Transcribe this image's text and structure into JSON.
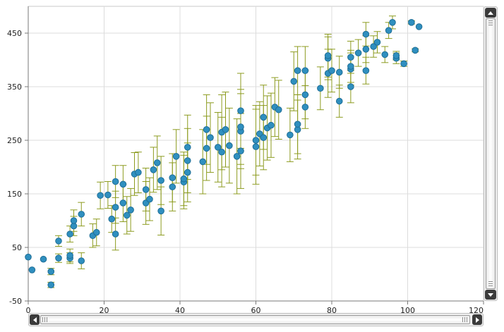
{
  "colors": {
    "point_fill": "#2f8fbf",
    "point_stroke": "#1f6e96",
    "error_bar": "#8c9b1f",
    "grid": "#dcdcdc",
    "axis": "#7a7a7a",
    "scroll_button": "#3b3b3b"
  },
  "scrollbars": {
    "vertical": {
      "up_icon": "arrow-up-icon",
      "down_icon": "arrow-down-icon"
    },
    "horizontal": {
      "left_icon": "arrow-left-icon",
      "right_icon": "arrow-right-icon"
    }
  },
  "chart_data": {
    "type": "scatter",
    "title": "",
    "xlabel": "",
    "ylabel": "",
    "xlim": [
      0,
      120
    ],
    "ylim": [
      -50,
      500
    ],
    "x_ticks": [
      0,
      20,
      40,
      60,
      80,
      100,
      120
    ],
    "y_ticks": [
      -50,
      50,
      150,
      250,
      350,
      450
    ],
    "grid": true,
    "legend": "none",
    "error_bars": true,
    "points": [
      {
        "x": 0,
        "y": 32,
        "err": 0
      },
      {
        "x": 1,
        "y": 8,
        "err": 0
      },
      {
        "x": 4,
        "y": 28,
        "err": 0
      },
      {
        "x": 6,
        "y": -20,
        "err": 5
      },
      {
        "x": 6,
        "y": 5,
        "err": 6
      },
      {
        "x": 8,
        "y": 30,
        "err": 8
      },
      {
        "x": 8,
        "y": 62,
        "err": 10
      },
      {
        "x": 11,
        "y": 30,
        "err": 10
      },
      {
        "x": 11,
        "y": 35,
        "err": 12
      },
      {
        "x": 11,
        "y": 75,
        "err": 15
      },
      {
        "x": 12,
        "y": 90,
        "err": 18
      },
      {
        "x": 12,
        "y": 100,
        "err": 20
      },
      {
        "x": 14,
        "y": 25,
        "err": 15
      },
      {
        "x": 14,
        "y": 112,
        "err": 22
      },
      {
        "x": 17,
        "y": 72,
        "err": 22
      },
      {
        "x": 18,
        "y": 78,
        "err": 25
      },
      {
        "x": 19,
        "y": 147,
        "err": 25
      },
      {
        "x": 21,
        "y": 148,
        "err": 25
      },
      {
        "x": 22,
        "y": 103,
        "err": 25
      },
      {
        "x": 23,
        "y": 75,
        "err": 30
      },
      {
        "x": 23,
        "y": 125,
        "err": 30
      },
      {
        "x": 23,
        "y": 173,
        "err": 30
      },
      {
        "x": 25,
        "y": 133,
        "err": 35
      },
      {
        "x": 25,
        "y": 168,
        "err": 35
      },
      {
        "x": 26,
        "y": 110,
        "err": 35
      },
      {
        "x": 27,
        "y": 120,
        "err": 40
      },
      {
        "x": 28,
        "y": 187,
        "err": 40
      },
      {
        "x": 29,
        "y": 190,
        "err": 38
      },
      {
        "x": 31,
        "y": 133,
        "err": 40
      },
      {
        "x": 31,
        "y": 158,
        "err": 40
      },
      {
        "x": 32,
        "y": 140,
        "err": 40
      },
      {
        "x": 33,
        "y": 195,
        "err": 42
      },
      {
        "x": 34,
        "y": 208,
        "err": 50
      },
      {
        "x": 35,
        "y": 118,
        "err": 45
      },
      {
        "x": 35,
        "y": 175,
        "err": 45
      },
      {
        "x": 38,
        "y": 163,
        "err": 45
      },
      {
        "x": 38,
        "y": 180,
        "err": 45
      },
      {
        "x": 39,
        "y": 220,
        "err": 50
      },
      {
        "x": 41,
        "y": 172,
        "err": 50
      },
      {
        "x": 41,
        "y": 178,
        "err": 50
      },
      {
        "x": 42,
        "y": 190,
        "err": 55
      },
      {
        "x": 42,
        "y": 212,
        "err": 60
      },
      {
        "x": 42,
        "y": 237,
        "err": 60
      },
      {
        "x": 46,
        "y": 210,
        "err": 60
      },
      {
        "x": 47,
        "y": 235,
        "err": 60
      },
      {
        "x": 47,
        "y": 270,
        "err": 65
      },
      {
        "x": 48,
        "y": 255,
        "err": 65
      },
      {
        "x": 50,
        "y": 237,
        "err": 65
      },
      {
        "x": 51,
        "y": 228,
        "err": 65
      },
      {
        "x": 51,
        "y": 265,
        "err": 70
      },
      {
        "x": 52,
        "y": 270,
        "err": 70
      },
      {
        "x": 53,
        "y": 240,
        "err": 70
      },
      {
        "x": 55,
        "y": 220,
        "err": 70
      },
      {
        "x": 56,
        "y": 230,
        "err": 70
      },
      {
        "x": 56,
        "y": 267,
        "err": 70
      },
      {
        "x": 56,
        "y": 275,
        "err": 70
      },
      {
        "x": 56,
        "y": 305,
        "err": 70
      },
      {
        "x": 60,
        "y": 238,
        "err": 70
      },
      {
        "x": 60,
        "y": 250,
        "err": 65
      },
      {
        "x": 61,
        "y": 262,
        "err": 60
      },
      {
        "x": 62,
        "y": 255,
        "err": 60
      },
      {
        "x": 62,
        "y": 293,
        "err": 60
      },
      {
        "x": 63,
        "y": 273,
        "err": 60
      },
      {
        "x": 64,
        "y": 278,
        "err": 60
      },
      {
        "x": 65,
        "y": 312,
        "err": 55
      },
      {
        "x": 66,
        "y": 307,
        "err": 55
      },
      {
        "x": 69,
        "y": 260,
        "err": 50
      },
      {
        "x": 70,
        "y": 360,
        "err": 55
      },
      {
        "x": 71,
        "y": 270,
        "err": 55
      },
      {
        "x": 71,
        "y": 280,
        "err": 55
      },
      {
        "x": 71,
        "y": 380,
        "err": 45
      },
      {
        "x": 73,
        "y": 312,
        "err": 40
      },
      {
        "x": 73,
        "y": 335,
        "err": 45
      },
      {
        "x": 73,
        "y": 380,
        "err": 45
      },
      {
        "x": 77,
        "y": 347,
        "err": 40
      },
      {
        "x": 79,
        "y": 375,
        "err": 45
      },
      {
        "x": 79,
        "y": 403,
        "err": 40
      },
      {
        "x": 79,
        "y": 408,
        "err": 40
      },
      {
        "x": 80,
        "y": 380,
        "err": 40
      },
      {
        "x": 82,
        "y": 323,
        "err": 30
      },
      {
        "x": 82,
        "y": 377,
        "err": 30
      },
      {
        "x": 85,
        "y": 350,
        "err": 30
      },
      {
        "x": 85,
        "y": 383,
        "err": 30
      },
      {
        "x": 85,
        "y": 388,
        "err": 30
      },
      {
        "x": 85,
        "y": 405,
        "err": 30
      },
      {
        "x": 87,
        "y": 413,
        "err": 25
      },
      {
        "x": 89,
        "y": 380,
        "err": 25
      },
      {
        "x": 89,
        "y": 420,
        "err": 25
      },
      {
        "x": 89,
        "y": 448,
        "err": 22
      },
      {
        "x": 91,
        "y": 425,
        "err": 20
      },
      {
        "x": 92,
        "y": 433,
        "err": 20
      },
      {
        "x": 94,
        "y": 410,
        "err": 15
      },
      {
        "x": 95,
        "y": 455,
        "err": 15
      },
      {
        "x": 96,
        "y": 470,
        "err": 12
      },
      {
        "x": 97,
        "y": 403,
        "err": 10
      },
      {
        "x": 97,
        "y": 408,
        "err": 8
      },
      {
        "x": 99,
        "y": 393,
        "err": 5
      },
      {
        "x": 101,
        "y": 470,
        "err": 3
      },
      {
        "x": 102,
        "y": 418,
        "err": 3
      },
      {
        "x": 103,
        "y": 462,
        "err": 0
      }
    ]
  }
}
